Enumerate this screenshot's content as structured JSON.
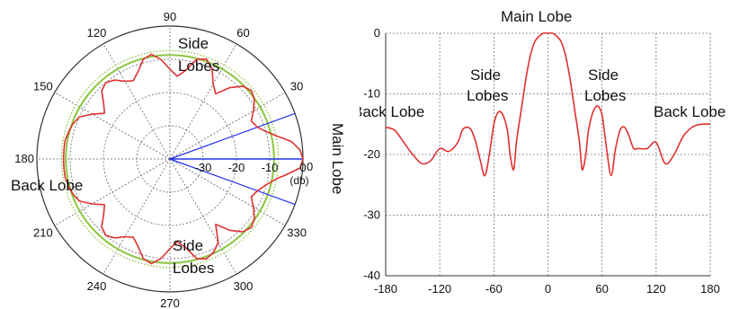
{
  "chart_data": [
    {
      "type": "polar",
      "angle_unit": "degrees",
      "angle_ticks": [
        0,
        30,
        60,
        90,
        120,
        150,
        180,
        210,
        240,
        270,
        300,
        330
      ],
      "radial_ticks": [
        -30,
        -20,
        -10,
        0
      ],
      "radial_unit": "(db)",
      "rlim": [
        -40,
        0
      ],
      "grid": true,
      "series": [
        {
          "color": "#e03030",
          "theta": [
            0,
            4,
            8,
            10,
            12,
            16,
            20,
            25,
            30,
            35,
            40,
            45,
            50,
            55,
            60,
            65,
            70,
            75,
            80,
            85,
            90,
            95,
            100,
            105,
            110,
            115,
            120,
            125,
            130,
            135,
            140,
            145,
            150,
            155,
            160,
            165,
            170,
            175,
            180,
            185,
            190,
            195,
            200,
            205,
            210,
            215,
            220,
            225,
            230,
            235,
            240,
            245,
            250,
            255,
            260,
            265,
            270,
            275,
            280,
            285,
            290,
            295,
            300,
            305,
            310,
            315,
            320,
            325,
            330,
            335,
            340,
            345,
            350,
            352,
            356,
            360
          ],
          "r": [
            0,
            -0.8,
            -3,
            -5,
            -7,
            -10,
            -12,
            -13,
            -11,
            -9,
            -8,
            -9,
            -12,
            -16,
            -14,
            -10,
            -8,
            -9,
            -13,
            -15,
            -13,
            -10,
            -8,
            -9,
            -12,
            -14,
            -13,
            -11,
            -10,
            -11,
            -14,
            -16,
            -13,
            -10,
            -9,
            -8.5,
            -8,
            -8,
            -8,
            -8,
            -8,
            -8.5,
            -9,
            -10,
            -13,
            -16,
            -14,
            -11,
            -10,
            -11,
            -13,
            -14,
            -12,
            -9,
            -8,
            -10,
            -13,
            -15,
            -13,
            -9,
            -8,
            -9,
            -11,
            -16,
            -12,
            -9,
            -8,
            -9,
            -11,
            -13,
            -12,
            -10,
            -7,
            -5,
            -0.8,
            0
          ]
        }
      ],
      "reference_circles": [
        {
          "r": -8.7,
          "color": "#8cc63f",
          "style": "solid"
        },
        {
          "r": -7.4,
          "color": "#8cc63f",
          "style": "dotted"
        }
      ],
      "beam_lines": {
        "angles": [
          20,
          -20
        ],
        "color": "#2233ee"
      },
      "annotations": [
        {
          "text": "Side",
          "group": "top-side"
        },
        {
          "text": "Lobes",
          "group": "top-side"
        },
        {
          "text": "Back Lobe",
          "group": "back"
        },
        {
          "text": "Side",
          "group": "bottom-side"
        },
        {
          "text": "Lobes",
          "group": "bottom-side"
        },
        {
          "text": "Main Lobe",
          "group": "main"
        }
      ]
    },
    {
      "type": "line",
      "xlabel": "",
      "ylabel": "",
      "xlim": [
        -180,
        180
      ],
      "ylim": [
        -40,
        0
      ],
      "x_ticks": [
        -180,
        -120,
        -60,
        0,
        60,
        120,
        180
      ],
      "y_ticks": [
        0,
        -10,
        -20,
        -30,
        -40
      ],
      "grid": true,
      "series": [
        {
          "color": "#e03030",
          "x": [
            -180,
            -170,
            -160,
            -150,
            -140,
            -130,
            -120,
            -110,
            -100,
            -95,
            -90,
            -85,
            -80,
            -75,
            -70,
            -65,
            -60,
            -55,
            -50,
            -45,
            -42,
            -38,
            -35,
            -30,
            -25,
            -20,
            -15,
            -10,
            -5,
            0,
            5,
            10,
            15,
            20,
            25,
            30,
            35,
            38,
            42,
            45,
            50,
            55,
            60,
            65,
            70,
            75,
            80,
            85,
            90,
            95,
            100,
            110,
            120,
            130,
            140,
            150,
            160,
            170,
            180
          ],
          "y": [
            -15.5,
            -16,
            -18,
            -20,
            -21.5,
            -21,
            -19,
            -19.5,
            -18,
            -16,
            -15.5,
            -16,
            -18,
            -21,
            -23.5,
            -20,
            -15,
            -13,
            -13.5,
            -16,
            -20,
            -22.5,
            -18,
            -13,
            -8,
            -4,
            -1.5,
            -0.5,
            0,
            0,
            0,
            -0.5,
            -1.5,
            -4,
            -8,
            -13,
            -18,
            -22.5,
            -20,
            -16,
            -13,
            -12,
            -13.5,
            -19,
            -23.5,
            -19,
            -16,
            -15.5,
            -17,
            -19,
            -19,
            -19,
            -18,
            -21.5,
            -20,
            -17,
            -15.5,
            -15,
            -15
          ]
        }
      ],
      "annotations": [
        {
          "text": "Main Lobe",
          "group": "main"
        },
        {
          "text": "Side",
          "group": "left-side"
        },
        {
          "text": "Lobes",
          "group": "left-side"
        },
        {
          "text": "Side",
          "group": "right-side"
        },
        {
          "text": "Lobes",
          "group": "right-side"
        },
        {
          "text": "Back Lobe",
          "group": "left-back"
        },
        {
          "text": "Back Lobe",
          "group": "right-back"
        }
      ]
    }
  ]
}
